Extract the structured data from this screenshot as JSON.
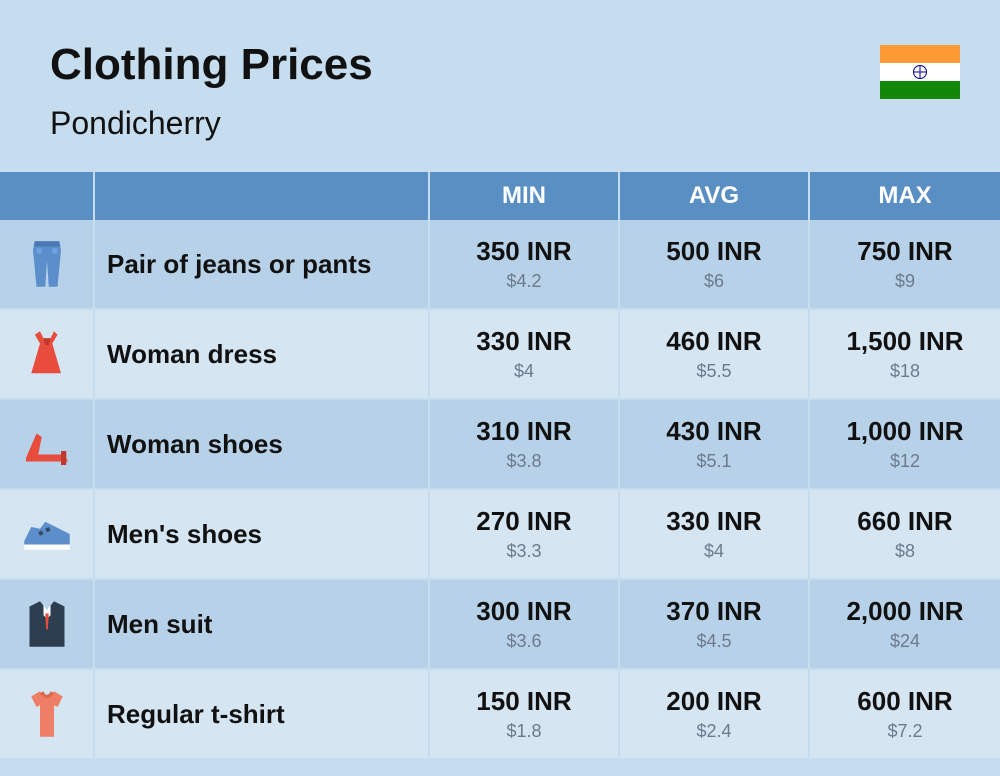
{
  "header": {
    "title": "Clothing Prices",
    "subtitle": "Pondicherry"
  },
  "flag": {
    "saffron": "#ff9933",
    "white": "#ffffff",
    "green": "#138808",
    "chakra": "#000088"
  },
  "columns": {
    "min": "MIN",
    "avg": "AVG",
    "max": "MAX"
  },
  "colors": {
    "page_bg": "#c6ddef",
    "header_bg": "#5a8fc4",
    "header_text": "#ffffff",
    "row_even": "#d5e5f2",
    "row_odd": "#b7d2e8",
    "text_main": "#111111",
    "text_sub": "#6b7b8c"
  },
  "items": [
    {
      "icon": "jeans",
      "label": "Pair of jeans or pants",
      "min_inr": "350 INR",
      "min_usd": "$4.2",
      "avg_inr": "500 INR",
      "avg_usd": "$6",
      "max_inr": "750 INR",
      "max_usd": "$9"
    },
    {
      "icon": "dress",
      "label": "Woman dress",
      "min_inr": "330 INR",
      "min_usd": "$4",
      "avg_inr": "460 INR",
      "avg_usd": "$5.5",
      "max_inr": "1,500 INR",
      "max_usd": "$18"
    },
    {
      "icon": "heel",
      "label": "Woman shoes",
      "min_inr": "310 INR",
      "min_usd": "$3.8",
      "avg_inr": "430 INR",
      "avg_usd": "$5.1",
      "max_inr": "1,000 INR",
      "max_usd": "$12"
    },
    {
      "icon": "sneaker",
      "label": "Men's shoes",
      "min_inr": "270 INR",
      "min_usd": "$3.3",
      "avg_inr": "330 INR",
      "avg_usd": "$4",
      "max_inr": "660 INR",
      "max_usd": "$8"
    },
    {
      "icon": "suit",
      "label": "Men suit",
      "min_inr": "300 INR",
      "min_usd": "$3.6",
      "avg_inr": "370 INR",
      "avg_usd": "$4.5",
      "max_inr": "2,000 INR",
      "max_usd": "$24"
    },
    {
      "icon": "tshirt",
      "label": "Regular t-shirt",
      "min_inr": "150 INR",
      "min_usd": "$1.8",
      "avg_inr": "200 INR",
      "avg_usd": "$2.4",
      "max_inr": "600 INR",
      "max_usd": "$7.2"
    }
  ]
}
